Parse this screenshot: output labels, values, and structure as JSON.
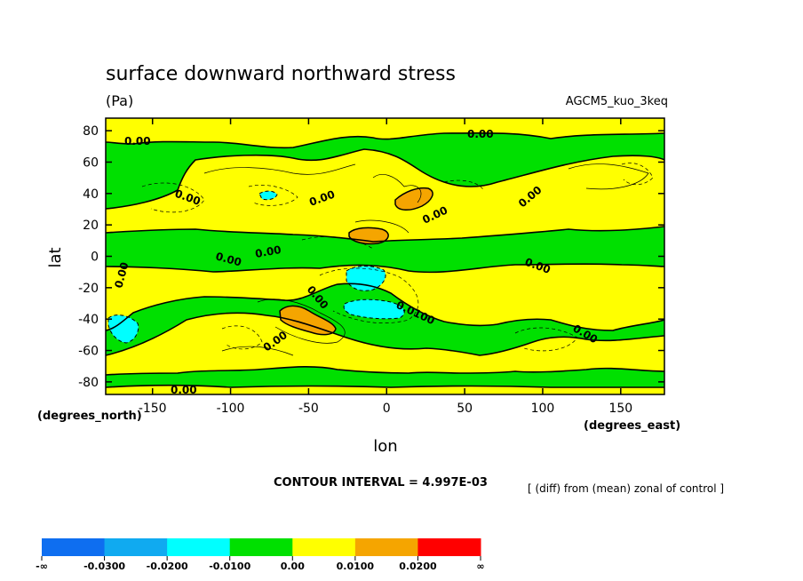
{
  "chart_data": {
    "type": "heatmap",
    "title": "surface downward northward stress",
    "units": "(Pa)",
    "run_label": "AGCM5_kuo_3keq",
    "xlabel": "lon",
    "ylabel": "lat",
    "x_units": "(degrees_east)",
    "y_units": "(degrees_north)",
    "xlim": [
      -180,
      178
    ],
    "ylim": [
      -88,
      88
    ],
    "x_ticks": [
      -150,
      -100,
      -50,
      0,
      50,
      100,
      150
    ],
    "y_ticks": [
      80,
      60,
      40,
      20,
      0,
      -20,
      -40,
      -60,
      -80
    ],
    "x_tick_labels": [
      "-150",
      "-100",
      "-50",
      "0",
      "50",
      "100",
      "150"
    ],
    "y_tick_labels": [
      "80",
      "60",
      "40",
      "20",
      "0",
      "-20",
      "-40",
      "-60",
      "-80"
    ],
    "contour_interval_text": "CONTOUR INTERVAL = 4.997E-03",
    "diff_note": "[ (diff) from (mean) zonal of control ]",
    "contour_labels": [
      "0.00",
      "0.00",
      "0.00",
      "0.00",
      "0.00",
      "0.00",
      "0.00",
      "0.00",
      "0.00",
      "0.00",
      "0.00",
      "0.00",
      "0.0100"
    ],
    "colorbar": {
      "colors": [
        "#0e6ef0",
        "#10aaf0",
        "#00ffff",
        "#00e000",
        "#ffff00",
        "#f5a500",
        "#ff0000"
      ],
      "labels": [
        "-∞",
        "-0.0300",
        "-0.0200",
        "-0.0100",
        "0.00",
        "0.0100",
        "0.0200",
        "∞"
      ]
    },
    "field_colors": {
      "positive": "#ffff00",
      "negative": "#00e000",
      "strong_positive": "#f5a500",
      "strong_negative": "#00ffff"
    }
  }
}
